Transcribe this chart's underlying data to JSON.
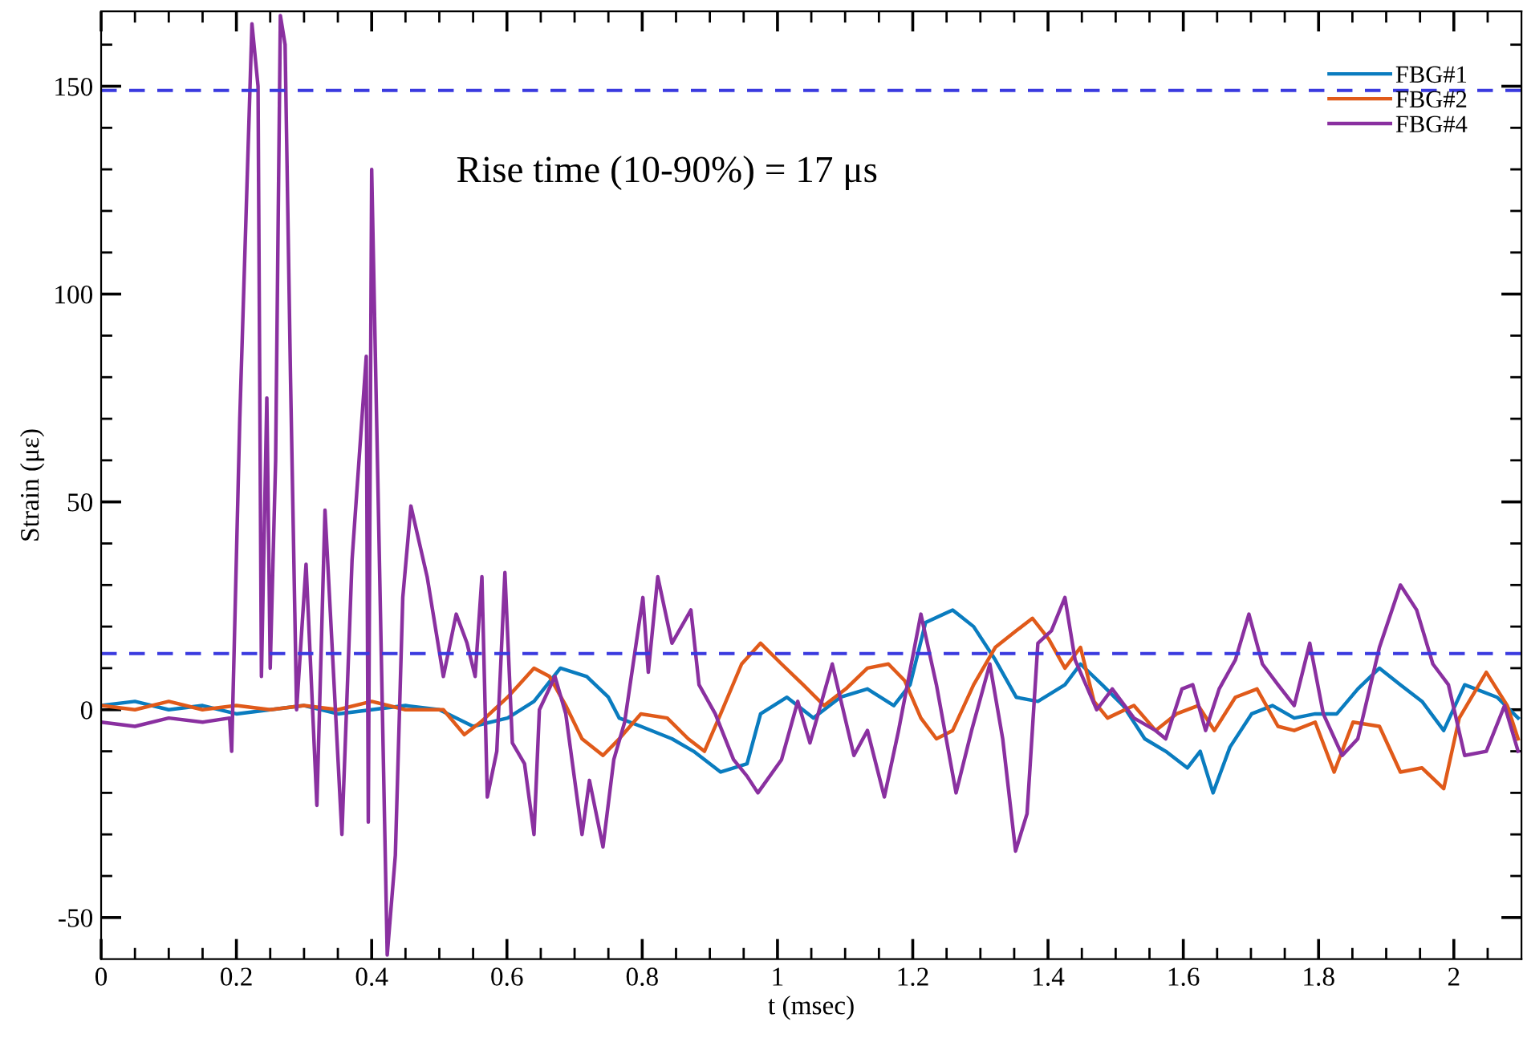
{
  "chart_data": {
    "type": "line",
    "xlabel": "t (msec)",
    "ylabel": "Strain (με)",
    "annotations": [
      "Rise time (10-90%) = 17 μs"
    ],
    "xlim": [
      0,
      2.1
    ],
    "ylim": [
      -60,
      168
    ],
    "xticks": [
      0,
      {
        "value": 0.05,
        "label": null
      },
      {
        "value": 0.1,
        "label": null
      },
      {
        "value": 0.15,
        "label": null
      },
      0.2,
      {
        "value": 0.25,
        "label": null
      },
      {
        "value": 0.3,
        "label": null
      },
      {
        "value": 0.35,
        "label": null
      },
      0.4,
      {
        "value": 0.45,
        "label": null
      },
      {
        "value": 0.5,
        "label": null
      },
      {
        "value": 0.55,
        "label": null
      },
      0.6,
      {
        "value": 0.65,
        "label": null
      },
      {
        "value": 0.7,
        "label": null
      },
      {
        "value": 0.75,
        "label": null
      },
      0.8,
      {
        "value": 0.85,
        "label": null
      },
      {
        "value": 0.9,
        "label": null
      },
      {
        "value": 0.95,
        "label": null
      },
      1,
      {
        "value": 1.05,
        "label": null
      },
      {
        "value": 1.1,
        "label": null
      },
      {
        "value": 1.15,
        "label": null
      },
      1.2,
      {
        "value": 1.25,
        "label": null
      },
      {
        "value": 1.3,
        "label": null
      },
      {
        "value": 1.35,
        "label": null
      },
      1.4,
      {
        "value": 1.45,
        "label": null
      },
      {
        "value": 1.5,
        "label": null
      },
      {
        "value": 1.55,
        "label": null
      },
      1.6,
      {
        "value": 1.65,
        "label": null
      },
      {
        "value": 1.7,
        "label": null
      },
      {
        "value": 1.75,
        "label": null
      },
      1.8,
      {
        "value": 1.85,
        "label": null
      },
      {
        "value": 1.9,
        "label": null
      },
      {
        "value": 1.95,
        "label": null
      },
      2,
      {
        "value": 2.05,
        "label": null
      }
    ],
    "yticks": [
      -50,
      {
        "value": -40,
        "label": null
      },
      {
        "value": -30,
        "label": null
      },
      {
        "value": -20,
        "label": null
      },
      {
        "value": -10,
        "label": null
      },
      0,
      {
        "value": 10,
        "label": null
      },
      {
        "value": 20,
        "label": null
      },
      {
        "value": 30,
        "label": null
      },
      {
        "value": 40,
        "label": null
      },
      50,
      {
        "value": 60,
        "label": null
      },
      {
        "value": 70,
        "label": null
      },
      {
        "value": 80,
        "label": null
      },
      {
        "value": 90,
        "label": null
      },
      100,
      {
        "value": 110,
        "label": null
      },
      {
        "value": 120,
        "label": null
      },
      {
        "value": 130,
        "label": null
      },
      {
        "value": 140,
        "label": null
      },
      150,
      {
        "value": 160,
        "label": null
      }
    ],
    "grid": false,
    "legend": "top right",
    "marker": "none",
    "line_style": "solid",
    "ref_lines": [
      {
        "axis": "y",
        "value": 149,
        "color": "#3a3adf",
        "line_style": "dashed"
      },
      {
        "axis": "y",
        "value": 13.5,
        "color": "#3a3adf",
        "line_style": "dashed"
      }
    ],
    "series": [
      {
        "name": "FBG#1",
        "color": "#0a7cbf",
        "x": [
          0,
          0.05,
          0.1,
          0.15,
          0.2,
          0.25,
          0.3,
          0.35,
          0.4,
          0.45,
          0.5,
          0.55,
          0.601,
          0.64,
          0.679,
          0.718,
          0.75,
          0.766,
          0.798,
          0.844,
          0.876,
          0.916,
          0.955,
          0.975,
          1.014,
          1.053,
          1.093,
          1.133,
          1.172,
          1.196,
          1.219,
          1.259,
          1.29,
          1.322,
          1.353,
          1.385,
          1.425,
          1.448,
          1.48,
          1.511,
          1.543,
          1.574,
          1.606,
          1.625,
          1.644,
          1.669,
          1.701,
          1.732,
          1.764,
          1.795,
          1.827,
          1.858,
          1.89,
          1.921,
          1.953,
          1.985,
          2.016,
          2.064,
          2.095
        ],
        "values": [
          1,
          2,
          0,
          1,
          -1,
          0,
          1,
          -1,
          0,
          1,
          0,
          -4,
          -2,
          2,
          10,
          8,
          3,
          -2,
          -4,
          -7,
          -10,
          -15,
          -13,
          -1,
          3,
          -2,
          3,
          5,
          1,
          6,
          21,
          24,
          20,
          12,
          3,
          2,
          6,
          11,
          6,
          1,
          -7,
          -10,
          -14,
          -10,
          -20,
          -9,
          -1,
          1,
          -2,
          -1,
          -1,
          5,
          10,
          6,
          2,
          -5,
          6,
          3,
          -2
        ]
      },
      {
        "name": "FBG#2",
        "color": "#e05a1a",
        "x": [
          0,
          0.05,
          0.1,
          0.15,
          0.2,
          0.25,
          0.3,
          0.35,
          0.4,
          0.45,
          0.506,
          0.537,
          0.561,
          0.601,
          0.64,
          0.663,
          0.687,
          0.711,
          0.742,
          0.766,
          0.798,
          0.837,
          0.868,
          0.892,
          0.916,
          0.947,
          0.975,
          1.006,
          1.038,
          1.069,
          1.101,
          1.133,
          1.164,
          1.188,
          1.212,
          1.235,
          1.259,
          1.29,
          1.322,
          1.353,
          1.377,
          1.401,
          1.425,
          1.448,
          1.468,
          1.488,
          1.527,
          1.559,
          1.59,
          1.622,
          1.646,
          1.677,
          1.709,
          1.74,
          1.764,
          1.795,
          1.823,
          1.851,
          1.89,
          1.921,
          1.953,
          1.985,
          2.008,
          2.048,
          2.079,
          2.095
        ],
        "values": [
          1,
          0,
          2,
          0,
          1,
          0,
          1,
          0,
          2,
          0,
          0,
          -6,
          -3,
          3,
          10,
          8,
          1,
          -7,
          -11,
          -7,
          -1,
          -2,
          -7,
          -10,
          -1,
          11,
          16,
          11,
          6,
          1,
          5,
          10,
          11,
          7,
          -2,
          -7,
          -5,
          6,
          15,
          19,
          22,
          17,
          10,
          15,
          2,
          -2,
          1,
          -5,
          -1,
          1,
          -5,
          3,
          5,
          -4,
          -5,
          -3,
          -15,
          -3,
          -4,
          -15,
          -14,
          -19,
          -2,
          9,
          1,
          -7
        ]
      },
      {
        "name": "FBG#4",
        "color": "#8a30a0",
        "x": [
          0,
          0.05,
          0.1,
          0.15,
          0.19,
          0.193,
          0.205,
          0.223,
          0.232,
          0.237,
          0.245,
          0.25,
          0.258,
          0.265,
          0.272,
          0.28,
          0.289,
          0.303,
          0.319,
          0.331,
          0.356,
          0.371,
          0.392,
          0.395,
          0.4,
          0.423,
          0.435,
          0.446,
          0.458,
          0.482,
          0.506,
          0.525,
          0.541,
          0.553,
          0.563,
          0.571,
          0.585,
          0.597,
          0.608,
          0.626,
          0.64,
          0.648,
          0.671,
          0.687,
          0.711,
          0.722,
          0.742,
          0.758,
          0.774,
          0.801,
          0.809,
          0.823,
          0.844,
          0.872,
          0.884,
          0.908,
          0.935,
          0.955,
          0.971,
          1.006,
          1.03,
          1.048,
          1.081,
          1.113,
          1.133,
          1.158,
          1.179,
          1.212,
          1.235,
          1.264,
          1.287,
          1.314,
          1.333,
          1.352,
          1.369,
          1.385,
          1.405,
          1.425,
          1.44,
          1.456,
          1.472,
          1.495,
          1.527,
          1.559,
          1.574,
          1.598,
          1.614,
          1.633,
          1.653,
          1.677,
          1.697,
          1.717,
          1.74,
          1.764,
          1.787,
          1.807,
          1.835,
          1.858,
          1.89,
          1.921,
          1.945,
          1.969,
          1.992,
          2.016,
          2.048,
          2.075,
          2.095
        ],
        "values": [
          -3,
          -4,
          -2,
          -3,
          -2,
          -10,
          70,
          165,
          150,
          8,
          75,
          10,
          60,
          167,
          160,
          80,
          0,
          35,
          -23,
          48,
          -30,
          36,
          85,
          -27,
          130,
          -59,
          -35,
          27,
          49,
          32,
          8,
          23,
          16,
          8,
          32,
          -21,
          -10,
          33,
          -8,
          -13,
          -30,
          0,
          8,
          -1,
          -30,
          -17,
          -33,
          -12,
          -3,
          27,
          9,
          32,
          16,
          24,
          6,
          -1,
          -12,
          -16,
          -20,
          -12,
          2,
          -8,
          11,
          -11,
          -5,
          -21,
          -5,
          23,
          6,
          -20,
          -5,
          11,
          -7,
          -34,
          -25,
          16,
          19,
          27,
          12,
          6,
          0,
          5,
          -2,
          -5,
          -7,
          5,
          6,
          -5,
          5,
          12,
          23,
          11,
          6,
          1,
          16,
          -1,
          -11,
          -7,
          15,
          30,
          24,
          11,
          6,
          -11,
          -10,
          1,
          -10
        ]
      }
    ]
  }
}
